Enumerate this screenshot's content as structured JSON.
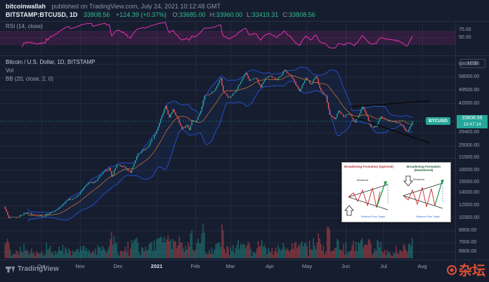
{
  "colors": {
    "bg": "#161d2f",
    "grid": "#232b40",
    "up": "#26a69a",
    "down": "#ef5350",
    "bb": "#2962ff",
    "bb_fill": "rgba(41,98,255,0.06)",
    "bb_basis": "#ff8a23",
    "rsi": "#e631b0",
    "rsi_band": "rgba(233,30,160,0.13)",
    "rsi_dash": "#b34aa0",
    "badge": "#26a69a",
    "trend": "#0c0c0c"
  },
  "header": {
    "author": "bitcoinwallah",
    "published": "published on TradingView.com, July 24, 2021 10:12:48 GMT",
    "symbol": "BITSTAMP:BTCUSD, 1D",
    "last_price": "33808.56",
    "change": "+124.39 (+0.37%)",
    "ohlc": [
      {
        "k": "O",
        "v": "33685.00"
      },
      {
        "k": "H",
        "v": "33960.00"
      },
      {
        "k": "L",
        "v": "33419.31"
      },
      {
        "k": "C",
        "v": "33808.56"
      }
    ]
  },
  "rsi_panel": {
    "label": "RSI (14, close)",
    "ticks": [
      {
        "v": 75,
        "label": "75.00"
      },
      {
        "v": 50,
        "label": "50.00"
      }
    ]
  },
  "main_panel": {
    "title": "Bitcoin / U.S. Dollar, 1D, BITSTAMP",
    "vol_label": "Vol",
    "bb_label": "BB (20, close, 2, 0)",
    "axis_unit": "USD",
    "price_ticks": [
      "68000.00",
      "58000.00",
      "49500.00",
      "42000.00",
      "29400.00",
      "25000.00",
      "21500.00",
      "18500.00",
      "16000.00",
      "14000.00",
      "12000.00",
      "10300.00",
      "8800.00",
      "7600.00",
      "6800.00"
    ],
    "price_badge": {
      "symbol": "BTCUSD",
      "price": "33808.56",
      "countdown": "13:47:14"
    },
    "months": [
      {
        "label": "Oct",
        "date": "2020-10-01",
        "bright": false
      },
      {
        "label": "Nov",
        "date": "2020-11-01",
        "bright": false
      },
      {
        "label": "Dec",
        "date": "2020-12-01",
        "bright": false
      },
      {
        "label": "2021",
        "date": "2021-01-01",
        "bright": true
      },
      {
        "label": "Feb",
        "date": "2021-02-01",
        "bright": false
      },
      {
        "label": "Mar",
        "date": "2021-03-01",
        "bright": false
      },
      {
        "label": "Apr",
        "date": "2021-04-01",
        "bright": false
      },
      {
        "label": "May",
        "date": "2021-05-01",
        "bright": false
      },
      {
        "label": "Jun",
        "date": "2021-06-01",
        "bright": false
      },
      {
        "label": "Jul",
        "date": "2021-07-01",
        "bright": false
      },
      {
        "label": "Aug",
        "date": "2021-08-01",
        "bright": false
      }
    ]
  },
  "chart_data": {
    "type": "candlestick",
    "title": "Bitcoin / U.S. Dollar, 1D, BITSTAMP with RSI(14), Volume and Bollinger Bands(20,2)",
    "symbol": "BTCUSD",
    "exchange": "BITSTAMP",
    "interval": "1D",
    "scale": "log",
    "price_range": [
      6300,
      74000
    ],
    "date_range": [
      "2020-08-30",
      "2021-08-25"
    ],
    "today": {
      "open": 33685.0,
      "high": 33960.0,
      "low": 33419.31,
      "close": 33808.56,
      "change": 124.39,
      "change_pct": 0.37
    },
    "last_close": 33808.56,
    "indicators": {
      "bb": {
        "window": 20,
        "mult": 2
      },
      "rsi": {
        "window": 14
      },
      "volume": true
    },
    "price_path": [
      [
        "2020-09-01",
        11900
      ],
      [
        "2020-09-05",
        10300
      ],
      [
        "2020-09-12",
        10450
      ],
      [
        "2020-09-19",
        11050
      ],
      [
        "2020-09-25",
        10700
      ],
      [
        "2020-10-03",
        10560
      ],
      [
        "2020-10-09",
        11050
      ],
      [
        "2020-10-14",
        11500
      ],
      [
        "2020-10-21",
        12800
      ],
      [
        "2020-10-28",
        13250
      ],
      [
        "2020-10-31",
        13800
      ],
      [
        "2020-11-06",
        15550
      ],
      [
        "2020-11-14",
        16300
      ],
      [
        "2020-11-18",
        17650
      ],
      [
        "2020-11-24",
        19100
      ],
      [
        "2020-11-26",
        17150
      ],
      [
        "2020-11-30",
        19700
      ],
      [
        "2020-12-06",
        19350
      ],
      [
        "2020-12-11",
        18000
      ],
      [
        "2020-12-17",
        22800
      ],
      [
        "2020-12-20",
        23450
      ],
      [
        "2020-12-25",
        24700
      ],
      [
        "2020-12-27",
        26300
      ],
      [
        "2020-12-31",
        29000
      ],
      [
        "2021-01-03",
        33000
      ],
      [
        "2021-01-08",
        40800
      ],
      [
        "2021-01-11",
        35400
      ],
      [
        "2021-01-14",
        39200
      ],
      [
        "2021-01-17",
        35800
      ],
      [
        "2021-01-21",
        30800
      ],
      [
        "2021-01-25",
        32300
      ],
      [
        "2021-01-27",
        30400
      ],
      [
        "2021-01-29",
        34300
      ],
      [
        "2021-02-01",
        33500
      ],
      [
        "2021-02-05",
        38300
      ],
      [
        "2021-02-08",
        46400
      ],
      [
        "2021-02-12",
        47400
      ],
      [
        "2021-02-16",
        49200
      ],
      [
        "2021-02-21",
        57500
      ],
      [
        "2021-02-23",
        48800
      ],
      [
        "2021-02-26",
        46300
      ],
      [
        "2021-02-28",
        45100
      ],
      [
        "2021-03-05",
        48900
      ],
      [
        "2021-03-09",
        54900
      ],
      [
        "2021-03-13",
        61200
      ],
      [
        "2021-03-16",
        55600
      ],
      [
        "2021-03-21",
        57500
      ],
      [
        "2021-03-25",
        51300
      ],
      [
        "2021-03-29",
        57800
      ],
      [
        "2021-03-31",
        58800
      ],
      [
        "2021-04-02",
        59000
      ],
      [
        "2021-04-07",
        56000
      ],
      [
        "2021-04-13",
        63500
      ],
      [
        "2021-04-17",
        60000
      ],
      [
        "2021-04-20",
        56500
      ],
      [
        "2021-04-25",
        49000
      ],
      [
        "2021-04-30",
        57700
      ],
      [
        "2021-05-04",
        53200
      ],
      [
        "2021-05-08",
        58800
      ],
      [
        "2021-05-12",
        49200
      ],
      [
        "2021-05-16",
        46400
      ],
      [
        "2021-05-19",
        36700
      ],
      [
        "2021-05-23",
        34700
      ],
      [
        "2021-05-26",
        38500
      ],
      [
        "2021-05-30",
        35700
      ],
      [
        "2021-06-02",
        36600
      ],
      [
        "2021-06-04",
        36800
      ],
      [
        "2021-06-08",
        33400
      ],
      [
        "2021-06-12",
        37300
      ],
      [
        "2021-06-14",
        40500
      ],
      [
        "2021-06-18",
        35800
      ],
      [
        "2021-06-21",
        31600
      ],
      [
        "2021-06-25",
        31600
      ],
      [
        "2021-06-29",
        35900
      ],
      [
        "2021-07-03",
        34700
      ],
      [
        "2021-07-06",
        34200
      ],
      [
        "2021-07-09",
        33800
      ],
      [
        "2021-07-14",
        32800
      ],
      [
        "2021-07-17",
        31400
      ],
      [
        "2021-07-20",
        29800
      ],
      [
        "2021-07-23",
        32300
      ],
      [
        "2021-07-24",
        33808.56
      ]
    ],
    "trendlines": [
      {
        "from": [
          "2021-06-04",
          40400
        ],
        "to": [
          "2021-08-07",
          43400
        ]
      },
      {
        "from": [
          "2021-06-06",
          35900
        ],
        "to": [
          "2021-08-07",
          25900
        ]
      }
    ]
  },
  "inset": {
    "left_title": "Broadening Formation (Uptrend)",
    "right_title": "Broadening Formation (Downtrend)",
    "breakout": "Breakout",
    "target": "Minimum Price Target"
  },
  "footer": {
    "brand": "TradingView",
    "watermark": "杂坛"
  }
}
